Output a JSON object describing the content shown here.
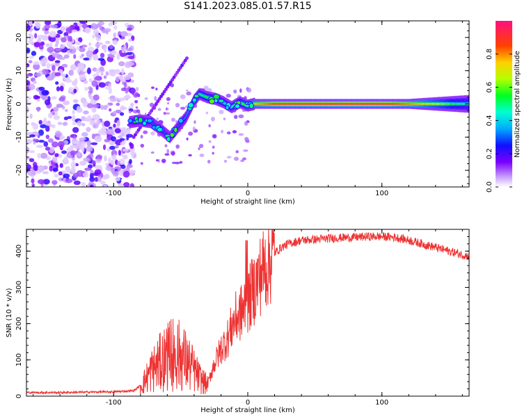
{
  "title": "S141.2023.085.01.57.R15",
  "chart_data": [
    {
      "type": "heatmap",
      "xlabel": "Height of straight line (km)",
      "ylabel": "Frequency (Hz)",
      "xlim": [
        -165,
        165
      ],
      "ylim": [
        -25,
        25
      ],
      "xticks": [
        -100,
        0,
        100
      ],
      "yticks": [
        -20,
        -10,
        0,
        10,
        20
      ],
      "colorbar": {
        "label": "Normalized spectral amplitude",
        "range": [
          0,
          1
        ],
        "ticks": [
          0.0,
          0.2,
          0.4,
          0.6,
          0.8
        ]
      },
      "ridge": {
        "description": "Main signal track: scattered noise below -85 km, tilted tone between -85 and 0 km, steady 0 Hz tone above 5 km",
        "x": [
          -88,
          -80,
          -72,
          -64,
          -58,
          -52,
          -46,
          -40,
          -36,
          -30,
          -24,
          -18,
          -12,
          -6,
          0,
          5,
          20,
          60,
          100,
          130,
          165
        ],
        "y": [
          -5.5,
          -5,
          -5.5,
          -8,
          -10,
          -7,
          -4,
          1,
          3,
          2,
          1.5,
          0.5,
          -1,
          0.5,
          -0.5,
          0,
          0,
          0,
          0,
          0,
          0
        ],
        "amplitude": [
          0.3,
          0.35,
          0.3,
          0.3,
          0.3,
          0.3,
          0.35,
          0.45,
          0.5,
          0.55,
          0.5,
          0.45,
          0.45,
          0.55,
          0.6,
          0.75,
          0.85,
          0.9,
          0.9,
          0.75,
          0.45
        ]
      }
    },
    {
      "type": "line",
      "xlabel": "Height of straight line (km)",
      "ylabel": "SNR (10 * v/v)",
      "xlim": [
        -165,
        165
      ],
      "ylim": [
        0,
        460
      ],
      "xticks": [
        -100,
        0,
        100
      ],
      "yticks": [
        0,
        100,
        200,
        300,
        400
      ],
      "series": [
        {
          "color": "#ee3333",
          "x": [
            -165,
            -140,
            -120,
            -100,
            -85,
            -78,
            -72,
            -66,
            -60,
            -54,
            -48,
            -42,
            -36,
            -30,
            -26,
            -20,
            -15,
            -10,
            -5,
            0,
            5,
            10,
            15,
            20,
            25,
            30,
            40,
            50,
            60,
            70,
            80,
            90,
            100,
            110,
            120,
            130,
            140,
            150,
            160,
            165
          ],
          "y": [
            10,
            10,
            11,
            12,
            15,
            35,
            70,
            90,
            110,
            120,
            105,
            80,
            50,
            30,
            80,
            130,
            160,
            210,
            230,
            260,
            300,
            340,
            370,
            395,
            410,
            420,
            430,
            432,
            435,
            437,
            438,
            440,
            440,
            438,
            430,
            420,
            410,
            400,
            390,
            385
          ]
        }
      ]
    }
  ]
}
